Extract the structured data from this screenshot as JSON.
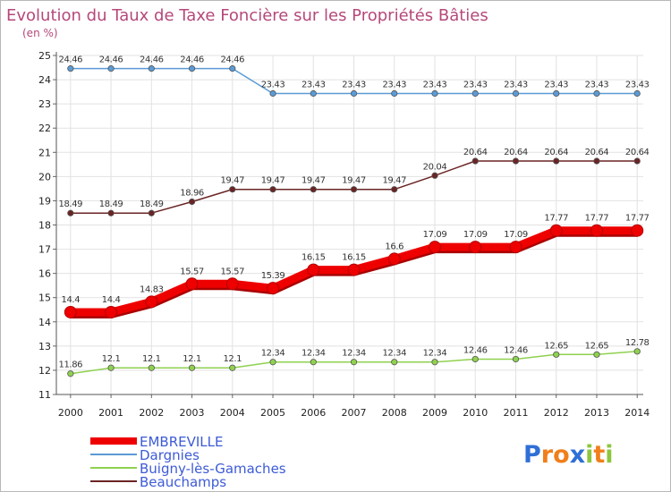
{
  "title": "Evolution du Taux de Taxe Foncière sur les Propriétés Bâties",
  "subtitle": "(en %)",
  "brand": {
    "text": "Proxiti",
    "letters": [
      "P",
      "r",
      "o",
      "x",
      "i",
      "t",
      "i"
    ],
    "colors": [
      "#2f6fd6",
      "#f07f1b",
      "#f07f1b",
      "#2f6fd6",
      "#8cc63f",
      "#f07f1b",
      "#8cc63f"
    ]
  },
  "chart_data": {
    "type": "line",
    "title": "Evolution du Taux de Taxe Foncière sur les Propriétés Bâties",
    "subtitle": "(en %)",
    "xlabel": "",
    "ylabel": "",
    "x": [
      "2000",
      "2001",
      "2002",
      "2003",
      "2004",
      "2005",
      "2006",
      "2007",
      "2008",
      "2009",
      "2010",
      "2011",
      "2012",
      "2013",
      "2014"
    ],
    "ylim": [
      11,
      25
    ],
    "yticks": [
      "11",
      "12",
      "13",
      "14",
      "15",
      "16",
      "17",
      "18",
      "19",
      "20",
      "21",
      "22",
      "23",
      "24",
      "25"
    ],
    "grid": true,
    "legend_position": "bottom-left",
    "series": [
      {
        "name": "EMBREVILLE",
        "color": "#ee0000",
        "style": "thick",
        "values": [
          14.4,
          14.4,
          14.83,
          15.57,
          15.57,
          15.39,
          16.15,
          16.15,
          16.6,
          17.09,
          17.09,
          17.09,
          17.77,
          17.77,
          17.77
        ],
        "labels": [
          "14.4",
          "14.4",
          "14.83",
          "15.57",
          "15.57",
          "15.39",
          "16.15",
          "16.15",
          "16.6",
          "17.09",
          "17.09",
          "17.09",
          "17.77",
          "17.77",
          "17.77"
        ]
      },
      {
        "name": "Dargnies",
        "color": "#5b9bd5",
        "style": "thin",
        "values": [
          24.46,
          24.46,
          24.46,
          24.46,
          24.46,
          23.43,
          23.43,
          23.43,
          23.43,
          23.43,
          23.43,
          23.43,
          23.43,
          23.43,
          23.43
        ],
        "labels": [
          "24.46",
          "24.46",
          "24.46",
          "24.46",
          "24.46",
          "23.43",
          "23.43",
          "23.43",
          "23.43",
          "23.43",
          "23.43",
          "23.43",
          "23.43",
          "23.43",
          "23.43"
        ]
      },
      {
        "name": "Buigny-lès-Gamaches",
        "color": "#8fd14f",
        "style": "thin",
        "values": [
          11.86,
          12.1,
          12.1,
          12.1,
          12.1,
          12.34,
          12.34,
          12.34,
          12.34,
          12.34,
          12.46,
          12.46,
          12.65,
          12.65,
          12.78
        ],
        "labels": [
          "11.86",
          "12.1",
          "12.1",
          "12.1",
          "12.1",
          "12.34",
          "12.34",
          "12.34",
          "12.34",
          "12.34",
          "12.46",
          "12.46",
          "12.65",
          "12.65",
          "12.78"
        ]
      },
      {
        "name": "Beauchamps",
        "color": "#6b2424",
        "style": "thin",
        "values": [
          18.49,
          18.49,
          18.49,
          18.96,
          19.47,
          19.47,
          19.47,
          19.47,
          19.47,
          20.04,
          20.64,
          20.64,
          20.64,
          20.64,
          20.64
        ],
        "labels": [
          "18.49",
          "18.49",
          "18.49",
          "18.96",
          "19.47",
          "19.47",
          "19.47",
          "19.47",
          "19.47",
          "20.04",
          "20.64",
          "20.64",
          "20.64",
          "20.64",
          "20.64"
        ]
      }
    ]
  }
}
